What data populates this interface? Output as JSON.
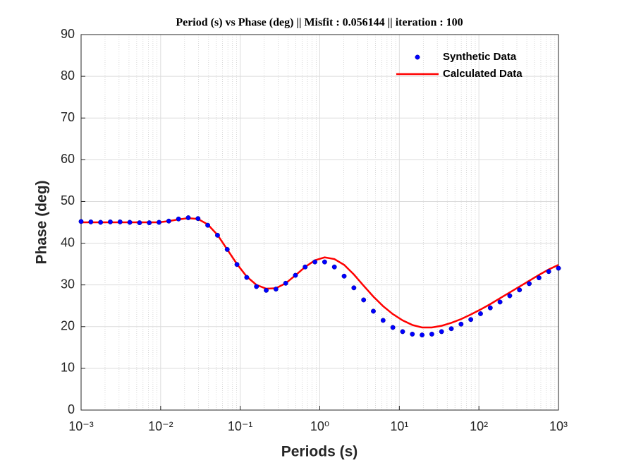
{
  "chart_data": {
    "type": "line",
    "title": "Period (s) vs Phase (deg)  || Misfit : 0.056144 || iteration : 100",
    "x_label": "Periods (s)",
    "y_label": "Phase (deg)",
    "x_scale": "log",
    "grid": true,
    "legend_position": "upper right",
    "xlim": [
      0.001,
      1000
    ],
    "ylim": [
      0,
      90
    ],
    "xticks": [
      {
        "value": 0.001,
        "label": "10⁻³"
      },
      {
        "value": 0.01,
        "label": "10⁻²"
      },
      {
        "value": 0.1,
        "label": "10⁻¹"
      },
      {
        "value": 1,
        "label": "10⁰"
      },
      {
        "value": 10,
        "label": "10¹"
      },
      {
        "value": 100,
        "label": "10²"
      },
      {
        "value": 1000,
        "label": "10³"
      }
    ],
    "yticks": [
      0,
      10,
      20,
      30,
      40,
      50,
      60,
      70,
      80,
      90
    ],
    "x": [
      0.001,
      0.001326,
      0.001758,
      0.00233,
      0.003089,
      0.004095,
      0.005429,
      0.007197,
      0.009541,
      0.01265,
      0.01677,
      0.02223,
      0.02947,
      0.03907,
      0.0518,
      0.06867,
      0.09103,
      0.1207,
      0.16,
      0.2121,
      0.2812,
      0.3728,
      0.4942,
      0.6551,
      0.8685,
      1.151,
      1.526,
      2.024,
      2.683,
      3.557,
      4.715,
      6.251,
      8.286,
      10.99,
      14.56,
      19.31,
      25.6,
      33.93,
      44.98,
      59.64,
      79.06,
      104.8,
      139,
      184.2,
      244.2,
      323.8,
      429.2,
      569,
      754.3,
      1000
    ],
    "series": [
      {
        "name": "Synthetic Data",
        "style": "markers",
        "color": "#0000ff",
        "values": [
          45.2,
          45.1,
          45.0,
          45.1,
          45.1,
          45.0,
          44.9,
          44.9,
          45.0,
          45.3,
          45.8,
          46.1,
          45.9,
          44.3,
          41.9,
          38.5,
          34.9,
          31.8,
          29.6,
          28.7,
          29.0,
          30.4,
          32.3,
          34.3,
          35.5,
          35.5,
          34.3,
          32.1,
          29.3,
          26.4,
          23.7,
          21.5,
          19.8,
          18.8,
          18.2,
          18.0,
          18.2,
          18.8,
          19.5,
          20.6,
          21.7,
          23.1,
          24.5,
          25.9,
          27.4,
          28.8,
          30.3,
          31.7,
          33.2,
          34.0
        ]
      },
      {
        "name": "Calculated Data",
        "style": "line",
        "color": "#ff0000",
        "values": [
          45.0,
          45.0,
          45.0,
          45.0,
          45.0,
          45.0,
          45.0,
          45.0,
          45.0,
          45.3,
          45.7,
          46.0,
          45.8,
          44.5,
          42.0,
          38.5,
          35.0,
          32.0,
          30.0,
          29.1,
          29.2,
          30.4,
          32.3,
          34.3,
          35.9,
          36.6,
          36.2,
          34.8,
          32.5,
          29.8,
          27.2,
          24.9,
          23.0,
          21.5,
          20.4,
          19.8,
          19.8,
          20.2,
          20.9,
          21.8,
          22.9,
          24.1,
          25.4,
          26.8,
          28.2,
          29.6,
          31.0,
          32.4,
          33.7,
          34.8
        ]
      }
    ]
  }
}
